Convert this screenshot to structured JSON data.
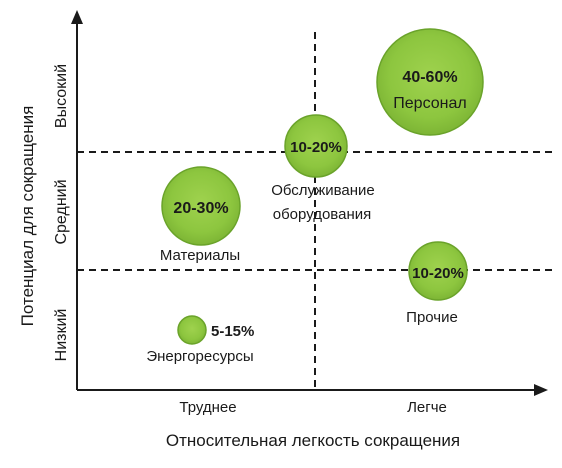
{
  "axes": {
    "x_title": "Относительная легкость сокращения",
    "y_title": "Потенциал для сокращения",
    "x_ticks": [
      "Труднее",
      "Легче"
    ],
    "y_ticks": [
      "Низкий",
      "Средний",
      "Высокий"
    ]
  },
  "bubbles": [
    {
      "id": "personnel",
      "value": "40-60%",
      "label": "Персонал"
    },
    {
      "id": "maintenance",
      "value": "10-20%",
      "label_line1": "Обслуживание",
      "label_line2": "оборудования"
    },
    {
      "id": "materials",
      "value": "20-30%",
      "label": "Материалы"
    },
    {
      "id": "other",
      "value": "10-20%",
      "label": "Прочие"
    },
    {
      "id": "energy",
      "value": "5-15%",
      "label": "Энергоресурсы"
    }
  ],
  "colors": {
    "bubble_fill": "#8dc63f",
    "bubble_stroke": "#6aa32a",
    "axis": "#1a1a1a"
  }
}
